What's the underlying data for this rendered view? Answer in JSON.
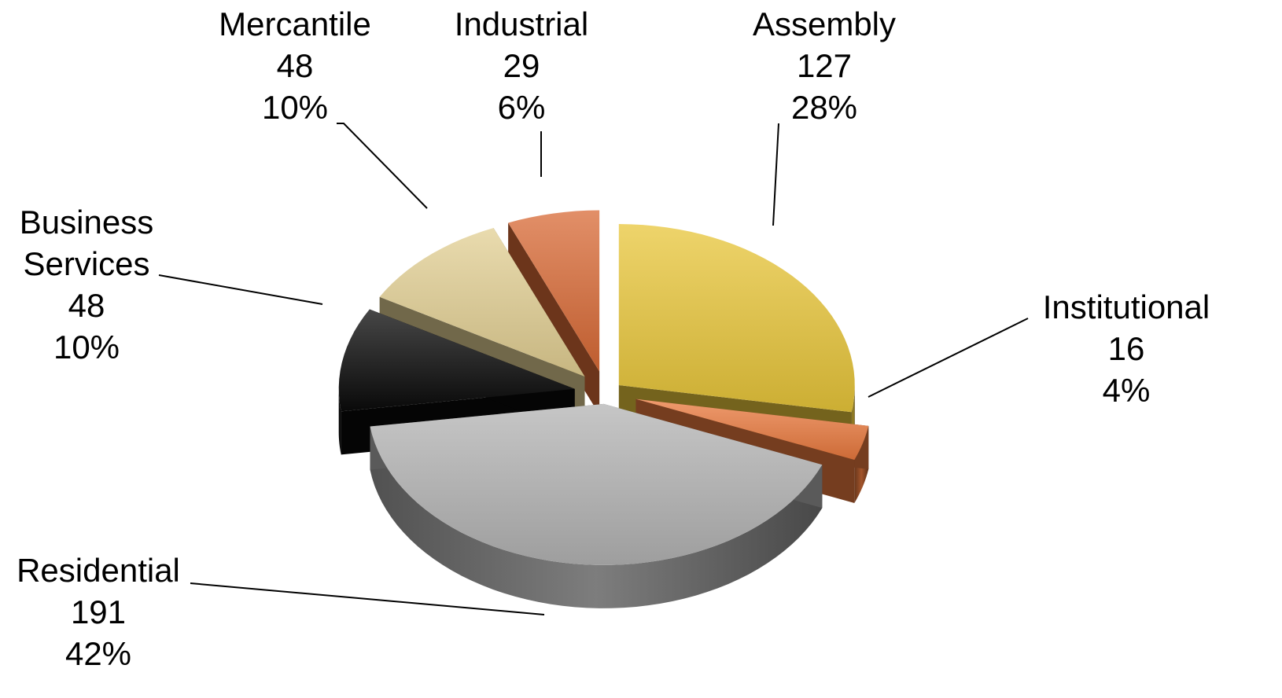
{
  "chart_data": {
    "type": "pie",
    "style": "3d-exploded",
    "slices": [
      {
        "name": "Assembly",
        "value": 127,
        "percent": "28%",
        "color": "#E8C63A"
      },
      {
        "name": "Institutional",
        "value": 16,
        "percent": "4%",
        "color": "#E97A3E"
      },
      {
        "name": "Residential",
        "value": 191,
        "percent": "42%",
        "color": "#B3B3B3"
      },
      {
        "name": "Business Services",
        "value": 48,
        "percent": "10%",
        "color": "#0A0A0A"
      },
      {
        "name": "Mercantile",
        "value": 48,
        "percent": "10%",
        "color": "#E2CF93"
      },
      {
        "name": "Industrial",
        "value": 29,
        "percent": "6%",
        "color": "#D86A35"
      }
    ]
  }
}
